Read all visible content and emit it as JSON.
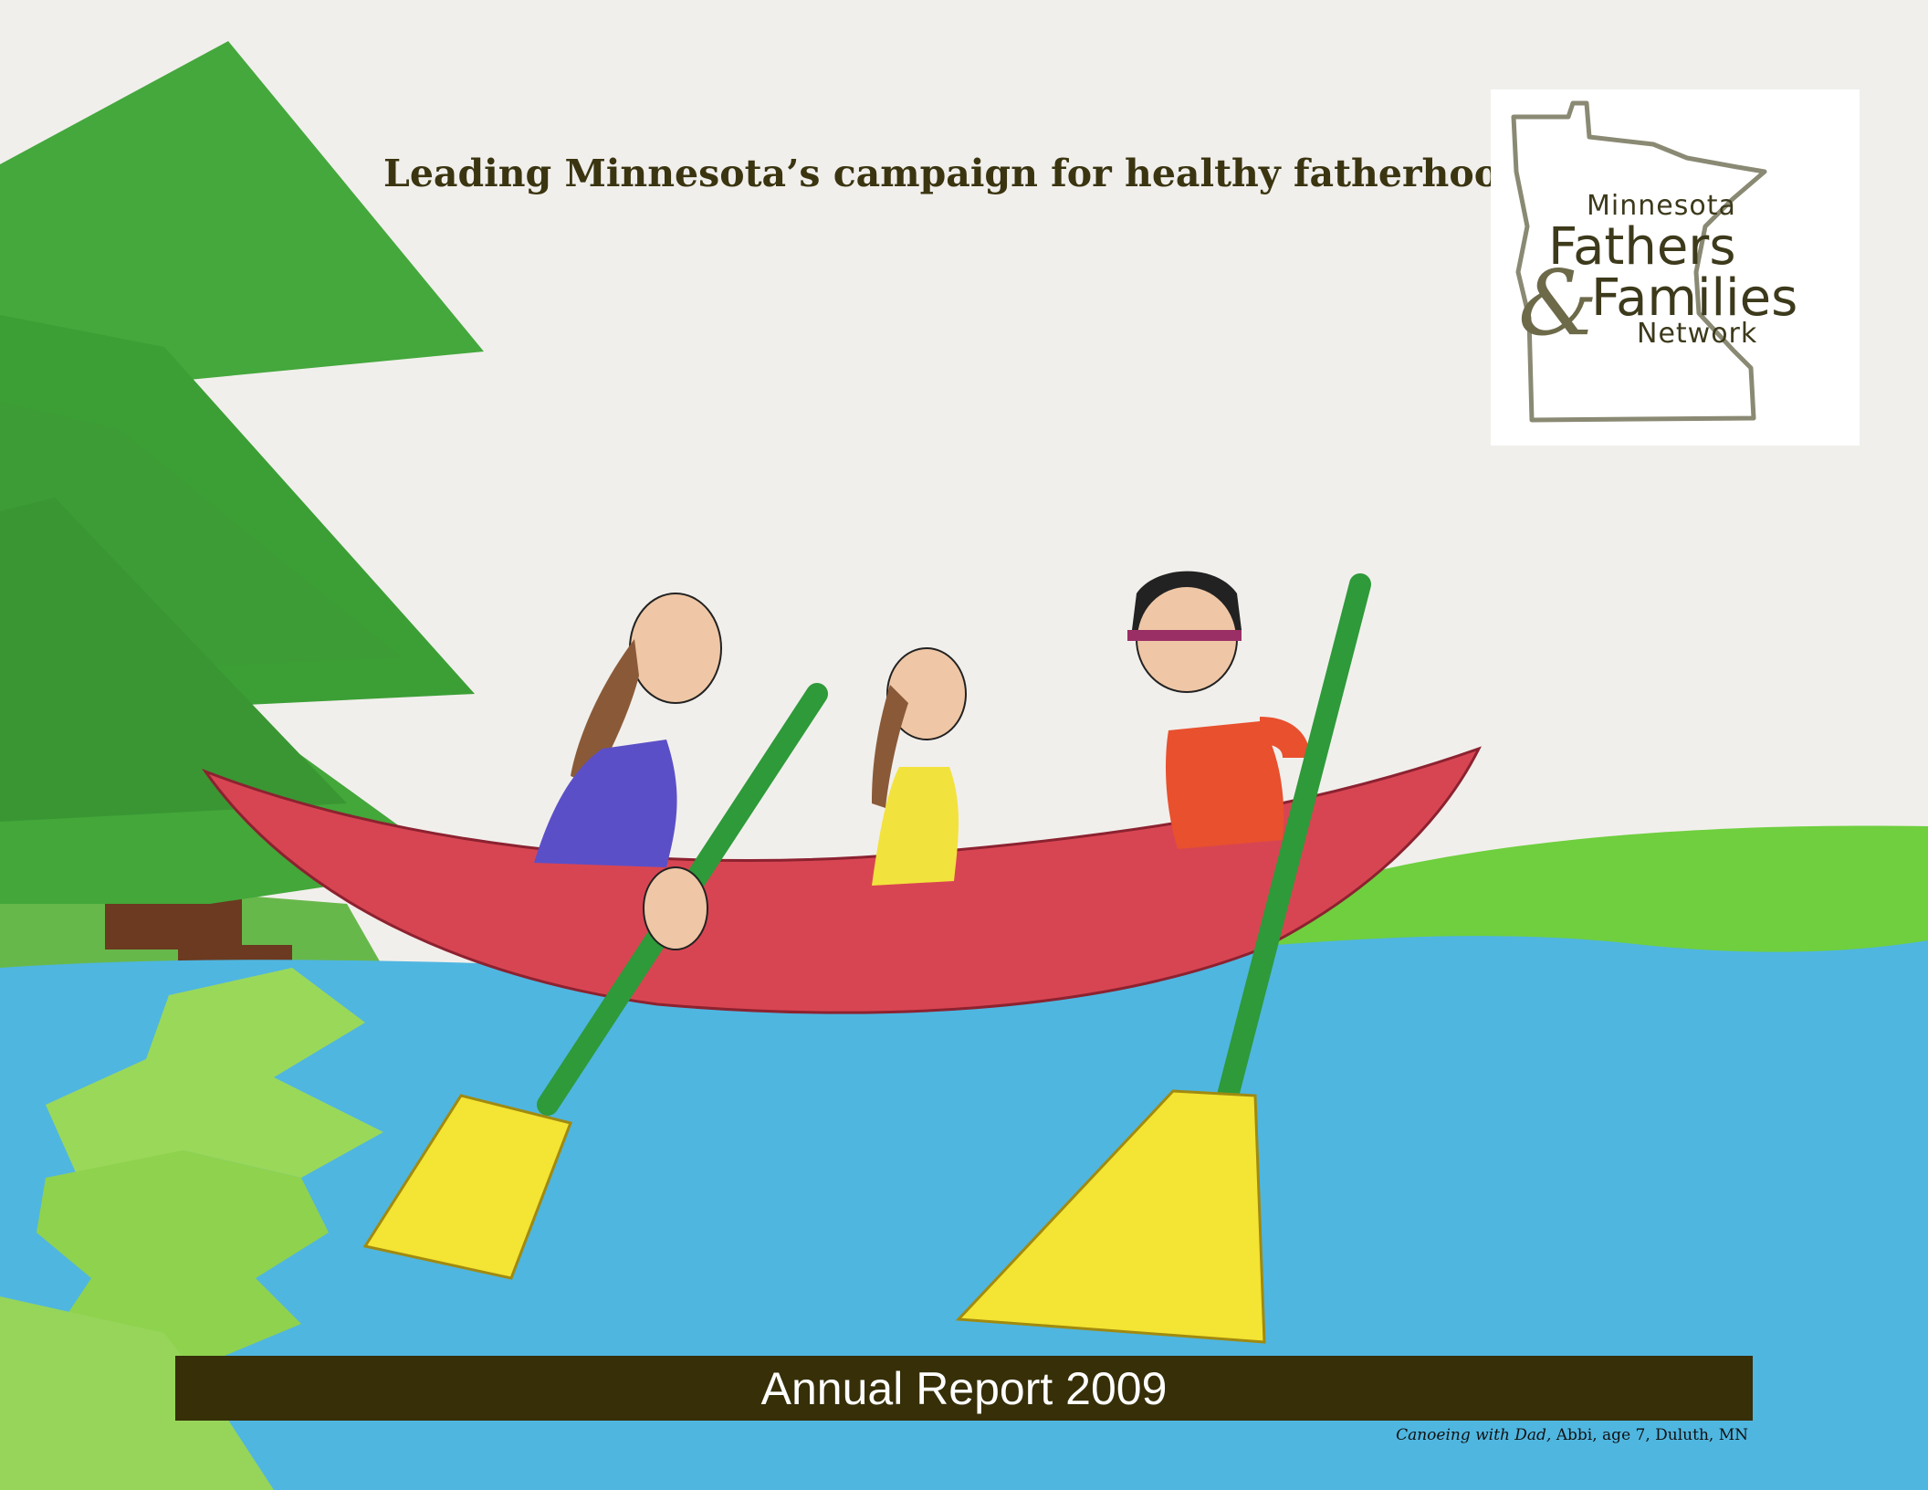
{
  "cover": {
    "tagline": "Leading Minnesota’s campaign for healthy fatherhood.",
    "banner_title": "Annual Report 2009"
  },
  "logo": {
    "line1": "Minnesota",
    "line2": "Fathers",
    "ampersand": "&",
    "line3": "Families",
    "line4": "Network"
  },
  "caption": {
    "title": "Canoeing with Dad,",
    "credit": " Abbi, age 7, Duluth, MN"
  },
  "colors": {
    "banner": "#362f08",
    "tagline": "#3a3510",
    "water": "#4fb6e0",
    "canoe": "#d84552",
    "tree": "#3fa83a",
    "paddle_blade": "#f4e433"
  }
}
